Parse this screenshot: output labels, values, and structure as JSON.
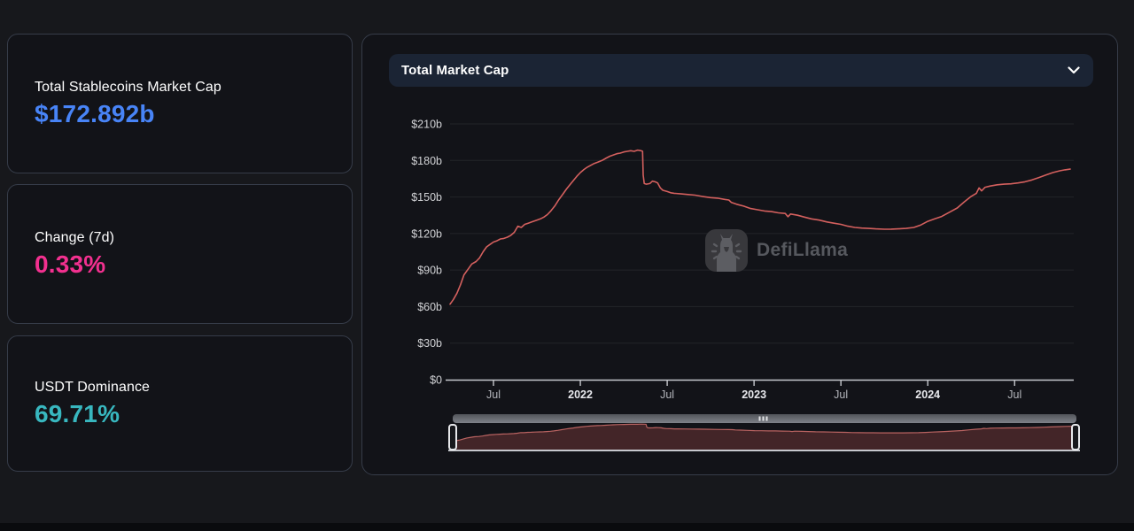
{
  "stats": [
    {
      "label": "Total Stablecoins Market Cap",
      "value": "$172.892b",
      "color": "#4884f7"
    },
    {
      "label": "Change (7d)",
      "value": "0.33%",
      "color": "#f2308f"
    },
    {
      "label": "USDT Dominance",
      "value": "69.71%",
      "color": "#38b7bf"
    }
  ],
  "panel": {
    "header": {
      "title": "Total Market Cap",
      "chevron_icon": "chevron-down"
    },
    "watermark": {
      "text": "DefiLlama",
      "icon": "defillama-llama-logo"
    }
  },
  "chart_data": {
    "type": "line",
    "title": "Total Market Cap",
    "unit": "USD billions",
    "grid": true,
    "legend": "none",
    "line_color": "#d4605e",
    "brush_area_fill": "#432528",
    "brush_area_stroke": "#b96361",
    "axis_color": "#c6c8cd",
    "grid_color": "#232428",
    "ylim": [
      0,
      210
    ],
    "xlim": [
      2021.25,
      2024.82
    ],
    "x_format": "decimal-year",
    "y_values": [
      0,
      30,
      60,
      90,
      120,
      150,
      180,
      210
    ],
    "y_ticks": [
      "$0",
      "$30b",
      "$60b",
      "$90b",
      "$120b",
      "$150b",
      "$180b",
      "$210b"
    ],
    "x_ticks": [
      {
        "label": "Jul",
        "t": 2021.5,
        "bold": false
      },
      {
        "label": "2022",
        "t": 2022.0,
        "bold": true
      },
      {
        "label": "Jul",
        "t": 2022.5,
        "bold": false
      },
      {
        "label": "2023",
        "t": 2023.0,
        "bold": true
      },
      {
        "label": "Jul",
        "t": 2023.5,
        "bold": false
      },
      {
        "label": "2024",
        "t": 2024.0,
        "bold": true
      },
      {
        "label": "Jul",
        "t": 2024.5,
        "bold": false
      }
    ],
    "series": [
      [
        2021.25,
        62
      ],
      [
        2021.27,
        66
      ],
      [
        2021.29,
        71
      ],
      [
        2021.31,
        78
      ],
      [
        2021.33,
        86
      ],
      [
        2021.355,
        91
      ],
      [
        2021.375,
        95
      ],
      [
        2021.4,
        97
      ],
      [
        2021.42,
        100
      ],
      [
        2021.44,
        105
      ],
      [
        2021.46,
        109
      ],
      [
        2021.48,
        111
      ],
      [
        2021.5,
        113
      ],
      [
        2021.52,
        114
      ],
      [
        2021.54,
        115.5
      ],
      [
        2021.56,
        116
      ],
      [
        2021.58,
        117
      ],
      [
        2021.6,
        118.5
      ],
      [
        2021.62,
        121
      ],
      [
        2021.64,
        126
      ],
      [
        2021.66,
        125
      ],
      [
        2021.68,
        127.5
      ],
      [
        2021.7,
        128.5
      ],
      [
        2021.72,
        129.5
      ],
      [
        2021.75,
        131
      ],
      [
        2021.77,
        132
      ],
      [
        2021.79,
        133.5
      ],
      [
        2021.81,
        135.5
      ],
      [
        2021.83,
        138.5
      ],
      [
        2021.855,
        143
      ],
      [
        2021.875,
        147.5
      ],
      [
        2021.9,
        152.5
      ],
      [
        2021.92,
        156.5
      ],
      [
        2021.94,
        160
      ],
      [
        2021.96,
        163.5
      ],
      [
        2021.98,
        167
      ],
      [
        2022.0,
        170
      ],
      [
        2022.02,
        172.5
      ],
      [
        2022.04,
        174.5
      ],
      [
        2022.06,
        176
      ],
      [
        2022.08,
        177.5
      ],
      [
        2022.1,
        178.5
      ],
      [
        2022.125,
        180
      ],
      [
        2022.15,
        182
      ],
      [
        2022.17,
        183.5
      ],
      [
        2022.19,
        184.5
      ],
      [
        2022.21,
        185.5
      ],
      [
        2022.23,
        186
      ],
      [
        2022.25,
        187
      ],
      [
        2022.27,
        187.5
      ],
      [
        2022.29,
        188
      ],
      [
        2022.31,
        187.5
      ],
      [
        2022.33,
        188.5
      ],
      [
        2022.35,
        188
      ],
      [
        2022.358,
        187.5
      ],
      [
        2022.362,
        168
      ],
      [
        2022.368,
        161
      ],
      [
        2022.38,
        160.5
      ],
      [
        2022.4,
        161
      ],
      [
        2022.415,
        163
      ],
      [
        2022.43,
        162.5
      ],
      [
        2022.445,
        161.5
      ],
      [
        2022.46,
        157.5
      ],
      [
        2022.475,
        155.5
      ],
      [
        2022.5,
        154.5
      ],
      [
        2022.52,
        153.5
      ],
      [
        2022.54,
        153
      ],
      [
        2022.58,
        152.5
      ],
      [
        2022.62,
        152
      ],
      [
        2022.66,
        151.5
      ],
      [
        2022.7,
        150.5
      ],
      [
        2022.75,
        149.5
      ],
      [
        2022.79,
        149
      ],
      [
        2022.83,
        148
      ],
      [
        2022.855,
        147.5
      ],
      [
        2022.87,
        145.5
      ],
      [
        2022.9,
        144
      ],
      [
        2022.94,
        142.5
      ],
      [
        2022.98,
        140.5
      ],
      [
        2023.02,
        139.5
      ],
      [
        2023.06,
        138.5
      ],
      [
        2023.1,
        138
      ],
      [
        2023.14,
        137
      ],
      [
        2023.18,
        136.5
      ],
      [
        2023.195,
        133.8
      ],
      [
        2023.21,
        136
      ],
      [
        2023.25,
        135
      ],
      [
        2023.29,
        133.5
      ],
      [
        2023.33,
        132
      ],
      [
        2023.375,
        131
      ],
      [
        2023.42,
        129.5
      ],
      [
        2023.46,
        128.5
      ],
      [
        2023.5,
        127.5
      ],
      [
        2023.54,
        126
      ],
      [
        2023.58,
        125
      ],
      [
        2023.62,
        124.5
      ],
      [
        2023.66,
        124.2
      ],
      [
        2023.7,
        123.8
      ],
      [
        2023.75,
        123.5
      ],
      [
        2023.79,
        123.6
      ],
      [
        2023.83,
        123.8
      ],
      [
        2023.875,
        124.2
      ],
      [
        2023.92,
        125
      ],
      [
        2023.96,
        127
      ],
      [
        2024.0,
        130
      ],
      [
        2024.04,
        132
      ],
      [
        2024.08,
        134
      ],
      [
        2024.125,
        137.5
      ],
      [
        2024.17,
        141
      ],
      [
        2024.21,
        146
      ],
      [
        2024.25,
        150.5
      ],
      [
        2024.28,
        153
      ],
      [
        2024.295,
        157.5
      ],
      [
        2024.31,
        155
      ],
      [
        2024.33,
        158
      ],
      [
        2024.36,
        159
      ],
      [
        2024.4,
        160
      ],
      [
        2024.44,
        160.5
      ],
      [
        2024.48,
        160.8
      ],
      [
        2024.52,
        161.5
      ],
      [
        2024.56,
        162.5
      ],
      [
        2024.6,
        164
      ],
      [
        2024.64,
        166
      ],
      [
        2024.68,
        168
      ],
      [
        2024.72,
        170
      ],
      [
        2024.76,
        171.5
      ],
      [
        2024.79,
        172.3
      ],
      [
        2024.82,
        172.9
      ]
    ]
  }
}
